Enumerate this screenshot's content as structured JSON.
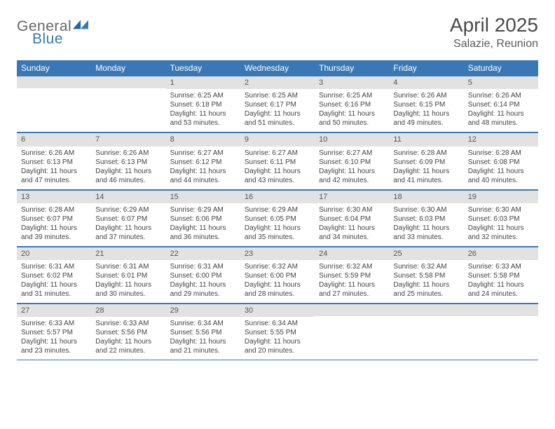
{
  "logo": {
    "general": "General",
    "blue": "Blue"
  },
  "title": "April 2025",
  "location": "Salazie, Reunion",
  "colors": {
    "header_bg": "#3a78b5",
    "header_text": "#ffffff",
    "daynum_bg": "#e2e2e2",
    "border": "#3a78b5",
    "text": "#444444"
  },
  "weekdays": [
    "Sunday",
    "Monday",
    "Tuesday",
    "Wednesday",
    "Thursday",
    "Friday",
    "Saturday"
  ],
  "weeks": [
    [
      null,
      null,
      {
        "n": "1",
        "sr": "Sunrise: 6:25 AM",
        "ss": "Sunset: 6:18 PM",
        "d1": "Daylight: 11 hours",
        "d2": "and 53 minutes."
      },
      {
        "n": "2",
        "sr": "Sunrise: 6:25 AM",
        "ss": "Sunset: 6:17 PM",
        "d1": "Daylight: 11 hours",
        "d2": "and 51 minutes."
      },
      {
        "n": "3",
        "sr": "Sunrise: 6:25 AM",
        "ss": "Sunset: 6:16 PM",
        "d1": "Daylight: 11 hours",
        "d2": "and 50 minutes."
      },
      {
        "n": "4",
        "sr": "Sunrise: 6:26 AM",
        "ss": "Sunset: 6:15 PM",
        "d1": "Daylight: 11 hours",
        "d2": "and 49 minutes."
      },
      {
        "n": "5",
        "sr": "Sunrise: 6:26 AM",
        "ss": "Sunset: 6:14 PM",
        "d1": "Daylight: 11 hours",
        "d2": "and 48 minutes."
      }
    ],
    [
      {
        "n": "6",
        "sr": "Sunrise: 6:26 AM",
        "ss": "Sunset: 6:13 PM",
        "d1": "Daylight: 11 hours",
        "d2": "and 47 minutes."
      },
      {
        "n": "7",
        "sr": "Sunrise: 6:26 AM",
        "ss": "Sunset: 6:13 PM",
        "d1": "Daylight: 11 hours",
        "d2": "and 46 minutes."
      },
      {
        "n": "8",
        "sr": "Sunrise: 6:27 AM",
        "ss": "Sunset: 6:12 PM",
        "d1": "Daylight: 11 hours",
        "d2": "and 44 minutes."
      },
      {
        "n": "9",
        "sr": "Sunrise: 6:27 AM",
        "ss": "Sunset: 6:11 PM",
        "d1": "Daylight: 11 hours",
        "d2": "and 43 minutes."
      },
      {
        "n": "10",
        "sr": "Sunrise: 6:27 AM",
        "ss": "Sunset: 6:10 PM",
        "d1": "Daylight: 11 hours",
        "d2": "and 42 minutes."
      },
      {
        "n": "11",
        "sr": "Sunrise: 6:28 AM",
        "ss": "Sunset: 6:09 PM",
        "d1": "Daylight: 11 hours",
        "d2": "and 41 minutes."
      },
      {
        "n": "12",
        "sr": "Sunrise: 6:28 AM",
        "ss": "Sunset: 6:08 PM",
        "d1": "Daylight: 11 hours",
        "d2": "and 40 minutes."
      }
    ],
    [
      {
        "n": "13",
        "sr": "Sunrise: 6:28 AM",
        "ss": "Sunset: 6:07 PM",
        "d1": "Daylight: 11 hours",
        "d2": "and 39 minutes."
      },
      {
        "n": "14",
        "sr": "Sunrise: 6:29 AM",
        "ss": "Sunset: 6:07 PM",
        "d1": "Daylight: 11 hours",
        "d2": "and 37 minutes."
      },
      {
        "n": "15",
        "sr": "Sunrise: 6:29 AM",
        "ss": "Sunset: 6:06 PM",
        "d1": "Daylight: 11 hours",
        "d2": "and 36 minutes."
      },
      {
        "n": "16",
        "sr": "Sunrise: 6:29 AM",
        "ss": "Sunset: 6:05 PM",
        "d1": "Daylight: 11 hours",
        "d2": "and 35 minutes."
      },
      {
        "n": "17",
        "sr": "Sunrise: 6:30 AM",
        "ss": "Sunset: 6:04 PM",
        "d1": "Daylight: 11 hours",
        "d2": "and 34 minutes."
      },
      {
        "n": "18",
        "sr": "Sunrise: 6:30 AM",
        "ss": "Sunset: 6:03 PM",
        "d1": "Daylight: 11 hours",
        "d2": "and 33 minutes."
      },
      {
        "n": "19",
        "sr": "Sunrise: 6:30 AM",
        "ss": "Sunset: 6:03 PM",
        "d1": "Daylight: 11 hours",
        "d2": "and 32 minutes."
      }
    ],
    [
      {
        "n": "20",
        "sr": "Sunrise: 6:31 AM",
        "ss": "Sunset: 6:02 PM",
        "d1": "Daylight: 11 hours",
        "d2": "and 31 minutes."
      },
      {
        "n": "21",
        "sr": "Sunrise: 6:31 AM",
        "ss": "Sunset: 6:01 PM",
        "d1": "Daylight: 11 hours",
        "d2": "and 30 minutes."
      },
      {
        "n": "22",
        "sr": "Sunrise: 6:31 AM",
        "ss": "Sunset: 6:00 PM",
        "d1": "Daylight: 11 hours",
        "d2": "and 29 minutes."
      },
      {
        "n": "23",
        "sr": "Sunrise: 6:32 AM",
        "ss": "Sunset: 6:00 PM",
        "d1": "Daylight: 11 hours",
        "d2": "and 28 minutes."
      },
      {
        "n": "24",
        "sr": "Sunrise: 6:32 AM",
        "ss": "Sunset: 5:59 PM",
        "d1": "Daylight: 11 hours",
        "d2": "and 27 minutes."
      },
      {
        "n": "25",
        "sr": "Sunrise: 6:32 AM",
        "ss": "Sunset: 5:58 PM",
        "d1": "Daylight: 11 hours",
        "d2": "and 25 minutes."
      },
      {
        "n": "26",
        "sr": "Sunrise: 6:33 AM",
        "ss": "Sunset: 5:58 PM",
        "d1": "Daylight: 11 hours",
        "d2": "and 24 minutes."
      }
    ],
    [
      {
        "n": "27",
        "sr": "Sunrise: 6:33 AM",
        "ss": "Sunset: 5:57 PM",
        "d1": "Daylight: 11 hours",
        "d2": "and 23 minutes."
      },
      {
        "n": "28",
        "sr": "Sunrise: 6:33 AM",
        "ss": "Sunset: 5:56 PM",
        "d1": "Daylight: 11 hours",
        "d2": "and 22 minutes."
      },
      {
        "n": "29",
        "sr": "Sunrise: 6:34 AM",
        "ss": "Sunset: 5:56 PM",
        "d1": "Daylight: 11 hours",
        "d2": "and 21 minutes."
      },
      {
        "n": "30",
        "sr": "Sunrise: 6:34 AM",
        "ss": "Sunset: 5:55 PM",
        "d1": "Daylight: 11 hours",
        "d2": "and 20 minutes."
      },
      null,
      null,
      null
    ]
  ]
}
